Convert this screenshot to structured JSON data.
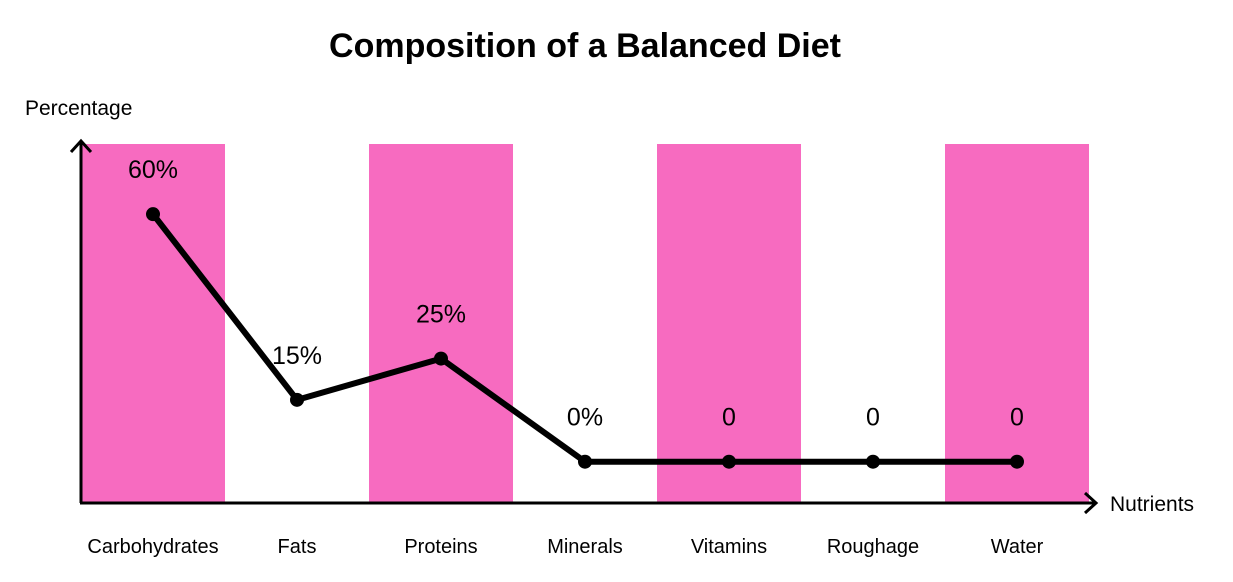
{
  "chart_data": {
    "type": "line",
    "title": "Composition of a Balanced Diet",
    "xlabel": "Nutrients",
    "ylabel": "Percentage",
    "categories": [
      "Carbohydrates",
      "Fats",
      "Proteins",
      "Minerals",
      "Vitamins",
      "Roughage",
      "Water"
    ],
    "series": [
      {
        "values": [
          60,
          15,
          25,
          0,
          0,
          0,
          0
        ],
        "data_labels": [
          "60%",
          "15%",
          "25%",
          "0%",
          "0",
          "0",
          "0"
        ],
        "color": "#000000"
      }
    ],
    "band_color": "#f76bc0",
    "ylim": [
      -10,
      77
    ],
    "grid": false,
    "legend": "none"
  }
}
